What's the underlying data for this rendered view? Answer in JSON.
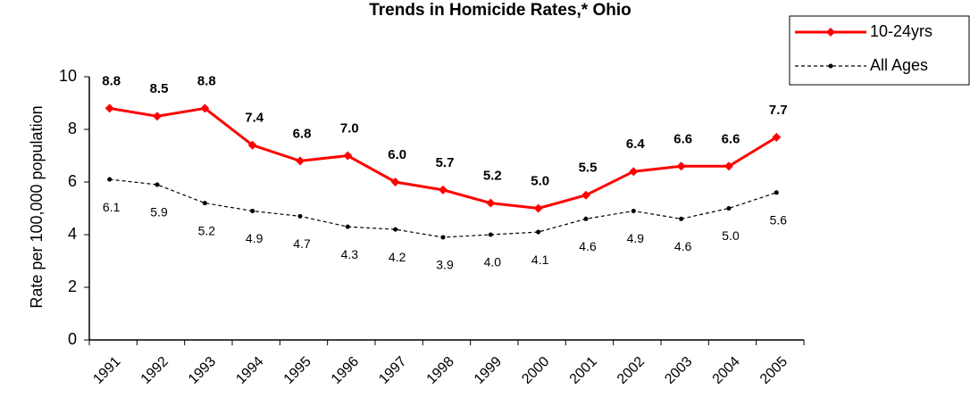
{
  "chart_data": {
    "type": "line",
    "title": "Trends in Homicide Rates,* Ohio",
    "y_label": "Rate per 100,000 population",
    "categories": [
      "1991",
      "1992",
      "1993",
      "1994",
      "1995",
      "1996",
      "1997",
      "1998",
      "1999",
      "2000",
      "2001",
      "2002",
      "2003",
      "2004",
      "2005"
    ],
    "series": [
      {
        "name": "10-24yrs",
        "color": "#ff0000",
        "dashed": false,
        "values": [
          8.8,
          8.5,
          8.8,
          7.4,
          6.8,
          7.0,
          6.0,
          5.7,
          5.2,
          5.0,
          5.5,
          6.4,
          6.6,
          6.6,
          7.7
        ],
        "value_labels": [
          "8.8",
          "8.5",
          "8.8",
          "7.4",
          "6.8",
          "7.0",
          "6.0",
          "5.7",
          "5.2",
          "5.0",
          "5.5",
          "6.4",
          "6.6",
          "6.6",
          "7.7"
        ]
      },
      {
        "name": "All Ages",
        "color": "#000000",
        "dashed": true,
        "values": [
          6.1,
          5.9,
          5.2,
          4.9,
          4.7,
          4.3,
          4.2,
          3.9,
          4.0,
          4.1,
          4.6,
          4.9,
          4.6,
          5.0,
          5.6
        ],
        "value_labels": [
          "6.1",
          "5.9",
          "5.2",
          "4.9",
          "4.7",
          "4.3",
          "4.2",
          "3.9",
          "4.0",
          "4.1",
          "4.6",
          "4.9",
          "4.6",
          "5.0",
          "5.6"
        ]
      }
    ],
    "ylim": [
      0,
      10
    ],
    "yticks": [
      0,
      2,
      4,
      6,
      8,
      10
    ],
    "grid": false,
    "legend": "top-right"
  }
}
